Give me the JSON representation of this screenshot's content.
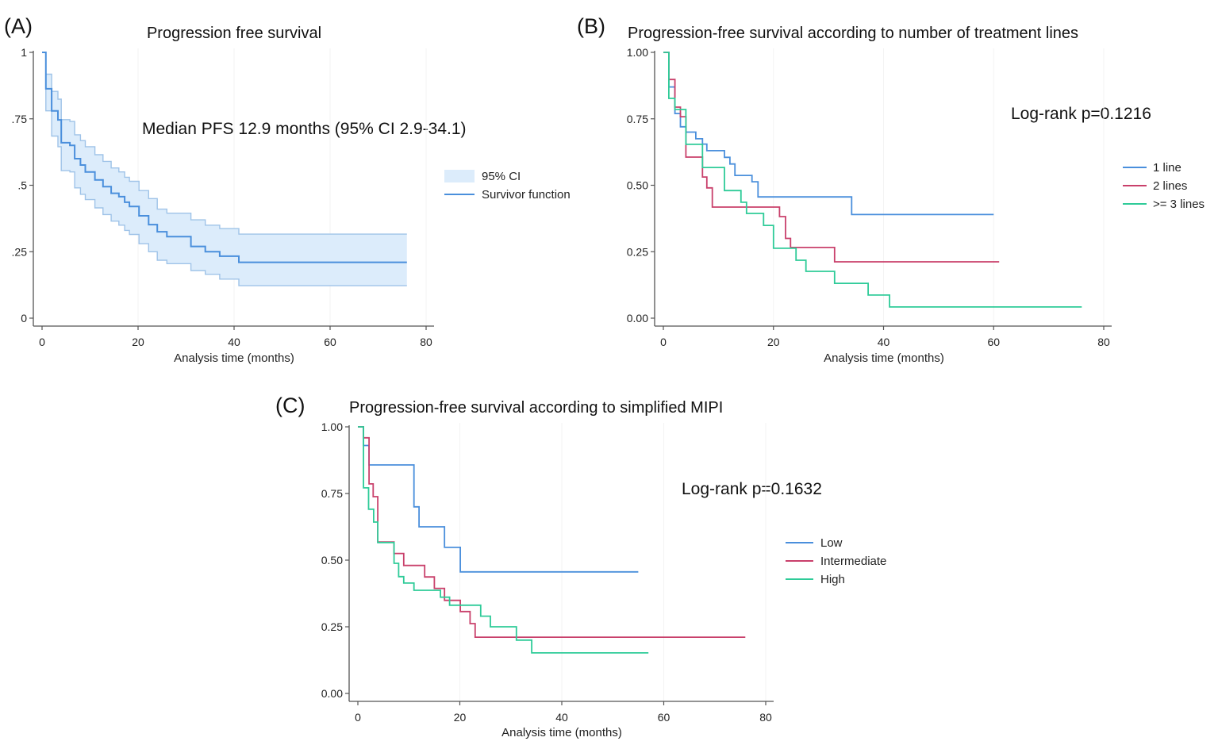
{
  "chart_data": [
    {
      "type": "line",
      "panel": "(A)",
      "title": "Progression free survival",
      "annotation": "Median PFS 12.9 months  (95% CI 2.9-34.1)",
      "xlabel": "Analysis time (months)",
      "ylabel": "",
      "xlim": [
        0,
        80
      ],
      "ylim": [
        0,
        1
      ],
      "xticks": [
        "0",
        "20",
        "40",
        "60",
        "80"
      ],
      "yticks": [
        "0",
        ".25",
        ".5",
        ".75",
        "1"
      ],
      "legend_position": "right",
      "legend": [
        "95% CI",
        "Survivor function"
      ],
      "colors": {
        "line": "#4a8fdc",
        "ci_fill": "#dcecfb",
        "ci_line": "#9fc3e8"
      },
      "step_times": [
        0,
        0.8,
        2,
        3.3,
        4,
        5.8,
        6.8,
        8,
        9,
        11,
        12.7,
        14.4,
        16,
        17.2,
        18.2,
        20.2,
        22.2,
        24,
        26,
        31,
        34,
        37,
        41
      ],
      "end_time": 76,
      "series": [
        {
          "name": "Survivor function",
          "values": [
            1,
            0.863,
            0.78,
            0.746,
            0.66,
            0.65,
            0.6,
            0.576,
            0.55,
            0.52,
            0.495,
            0.47,
            0.457,
            0.436,
            0.42,
            0.385,
            0.352,
            0.325,
            0.307,
            0.27,
            0.25,
            0.233,
            0.21
          ]
        },
        {
          "name": "95% CI upper",
          "values": [
            1,
            0.918,
            0.853,
            0.824,
            0.747,
            0.74,
            0.69,
            0.668,
            0.645,
            0.615,
            0.59,
            0.565,
            0.55,
            0.53,
            0.515,
            0.48,
            0.45,
            0.41,
            0.395,
            0.37,
            0.35,
            0.337,
            0.316
          ]
        },
        {
          "name": "95% CI lower",
          "values": [
            1,
            0.78,
            0.685,
            0.645,
            0.555,
            0.55,
            0.49,
            0.466,
            0.446,
            0.415,
            0.39,
            0.365,
            0.35,
            0.33,
            0.315,
            0.28,
            0.25,
            0.218,
            0.205,
            0.179,
            0.165,
            0.147,
            0.122
          ]
        }
      ]
    },
    {
      "type": "line",
      "panel": "(B)",
      "title": "Progression-free survival according to number of treatment lines",
      "annotation": "Log-rank p=0.1216",
      "xlabel": "Analysis time (months)",
      "ylabel": "",
      "xlim": [
        0,
        80
      ],
      "ylim": [
        0,
        1
      ],
      "xticks": [
        "0",
        "20",
        "40",
        "60",
        "80"
      ],
      "yticks": [
        "0.00",
        "0.25",
        "0.50",
        "0.75",
        "1.00"
      ],
      "legend_position": "right",
      "series": [
        {
          "name": "1 line",
          "color": "#4a8fdc",
          "end": 60,
          "t": [
            0,
            1,
            2.1,
            3.1,
            4.1,
            5.9,
            7.1,
            7.9,
            11.1,
            12.1,
            13,
            16.1,
            17.2,
            34.2
          ],
          "s": [
            1,
            0.87,
            0.77,
            0.72,
            0.7,
            0.675,
            0.655,
            0.63,
            0.605,
            0.58,
            0.537,
            0.513,
            0.456,
            0.39
          ]
        },
        {
          "name": "2 lines",
          "color": "#c9406b",
          "end": 61,
          "t": [
            0,
            1,
            2.1,
            3.1,
            4.1,
            7.1,
            7.9,
            8.9,
            21.1,
            22.2,
            23.1,
            31.1
          ],
          "s": [
            1,
            0.898,
            0.794,
            0.758,
            0.606,
            0.531,
            0.49,
            0.418,
            0.382,
            0.3,
            0.266,
            0.212
          ]
        },
        {
          "name": ">= 3 lines",
          "color": "#2ecb98",
          "end": 76,
          "t": [
            0,
            1,
            2.1,
            4.1,
            7.1,
            11.1,
            14.1,
            15.1,
            18.2,
            20,
            24.1,
            25.9,
            31.1,
            37.2,
            41.1
          ],
          "s": [
            1,
            0.827,
            0.785,
            0.654,
            0.567,
            0.48,
            0.436,
            0.394,
            0.349,
            0.263,
            0.218,
            0.176,
            0.131,
            0.087,
            0.042
          ]
        }
      ]
    },
    {
      "type": "line",
      "panel": "(C)",
      "title": "Progression-free survival according to simplified MIPI",
      "annotation": "Log-rank p=0.1632",
      "xlabel": "Analysis time (months)",
      "ylabel": "",
      "xlim": [
        0,
        80
      ],
      "ylim": [
        0,
        1
      ],
      "xticks": [
        "0",
        "20",
        "40",
        "60",
        "80"
      ],
      "yticks": [
        "0.00",
        "0.25",
        "0.50",
        "0.75",
        "1.00"
      ],
      "legend_position": "right",
      "series": [
        {
          "name": "Low",
          "color": "#4a8fdc",
          "end": 55,
          "t": [
            0,
            1.1,
            2.2,
            11,
            12,
            17,
            20.1
          ],
          "s": [
            1,
            0.93,
            0.857,
            0.7,
            0.625,
            0.548,
            0.456
          ]
        },
        {
          "name": "Intermediate",
          "color": "#c9406b",
          "end": 76,
          "t": [
            0,
            1.1,
            2.2,
            3,
            3.9,
            7.1,
            9,
            13.1,
            15,
            17,
            20.1,
            22,
            23
          ],
          "s": [
            1,
            0.959,
            0.786,
            0.738,
            0.568,
            0.525,
            0.48,
            0.437,
            0.394,
            0.349,
            0.307,
            0.262,
            0.211
          ]
        },
        {
          "name": "High",
          "color": "#2ecb98",
          "end": 57,
          "t": [
            0,
            1.1,
            2.1,
            3.1,
            3.9,
            7.1,
            8,
            9,
            11,
            16.2,
            18,
            24.1,
            26,
            31.1,
            34.1
          ],
          "s": [
            1,
            0.771,
            0.691,
            0.643,
            0.566,
            0.488,
            0.438,
            0.414,
            0.387,
            0.361,
            0.331,
            0.29,
            0.25,
            0.2,
            0.152
          ]
        }
      ]
    }
  ]
}
